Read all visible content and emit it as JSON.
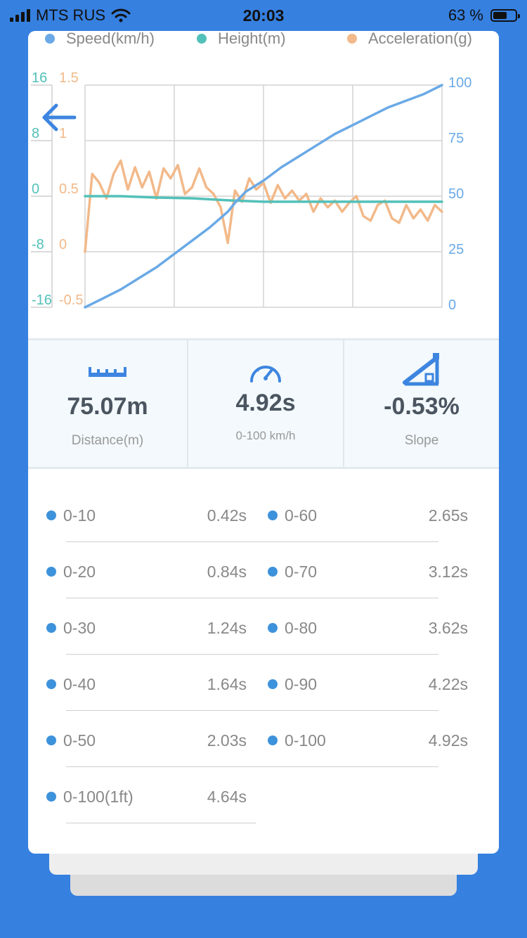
{
  "status_bar": {
    "carrier": "MTS RUS",
    "time": "20:03",
    "battery_text": "63 %",
    "battery_level": 0.63,
    "icons": [
      "signal-icon",
      "wifi-icon",
      "battery-icon"
    ]
  },
  "chart_data": {
    "type": "line",
    "series": [
      {
        "name": "Speed(km/h)",
        "color": "#6aa9e6",
        "axis": "right",
        "x": [
          0,
          0.05,
          0.1,
          0.15,
          0.2,
          0.25,
          0.3,
          0.35,
          0.4,
          0.42,
          0.45,
          0.5,
          0.55,
          0.6,
          0.65,
          0.7,
          0.75,
          0.8,
          0.85,
          0.9,
          0.95,
          1.0
        ],
        "values": [
          0,
          4,
          8,
          13,
          18,
          24,
          30,
          36,
          43,
          47,
          52,
          57,
          63,
          68,
          73,
          78,
          82,
          86,
          90,
          93,
          96,
          100
        ]
      },
      {
        "name": "Height(m)",
        "color": "#52c1b9",
        "axis": "left-outer",
        "x": [
          0,
          0.1,
          0.2,
          0.3,
          0.4,
          0.5,
          0.6,
          0.7,
          0.8,
          0.9,
          1.0
        ],
        "values": [
          0,
          0,
          -0.2,
          -0.3,
          -0.6,
          -0.8,
          -0.8,
          -0.8,
          -0.8,
          -0.8,
          -0.8
        ]
      },
      {
        "name": "Acceleration(g)",
        "color": "#f2b98a",
        "axis": "left-inner",
        "x": [
          0,
          0.02,
          0.04,
          0.06,
          0.08,
          0.1,
          0.12,
          0.14,
          0.16,
          0.18,
          0.2,
          0.22,
          0.24,
          0.26,
          0.28,
          0.3,
          0.32,
          0.34,
          0.36,
          0.38,
          0.4,
          0.42,
          0.44,
          0.46,
          0.48,
          0.5,
          0.52,
          0.54,
          0.56,
          0.58,
          0.6,
          0.62,
          0.64,
          0.66,
          0.68,
          0.7,
          0.72,
          0.74,
          0.76,
          0.78,
          0.8,
          0.82,
          0.84,
          0.86,
          0.88,
          0.9,
          0.92,
          0.94,
          0.96,
          0.98,
          1.0
        ],
        "values": [
          0,
          0.7,
          0.62,
          0.48,
          0.7,
          0.82,
          0.56,
          0.76,
          0.58,
          0.72,
          0.48,
          0.75,
          0.66,
          0.78,
          0.52,
          0.58,
          0.75,
          0.58,
          0.52,
          0.4,
          0.08,
          0.55,
          0.45,
          0.66,
          0.56,
          0.62,
          0.44,
          0.6,
          0.48,
          0.55,
          0.46,
          0.52,
          0.36,
          0.48,
          0.4,
          0.46,
          0.36,
          0.44,
          0.5,
          0.32,
          0.28,
          0.42,
          0.46,
          0.3,
          0.26,
          0.42,
          0.3,
          0.38,
          0.28,
          0.42,
          0.36
        ]
      }
    ],
    "axes": {
      "left_outer": {
        "ticks": [
          "16",
          "8",
          "0",
          "-8",
          "-16"
        ],
        "range": [
          -16,
          16
        ]
      },
      "left_inner": {
        "ticks": [
          "1.5",
          "1",
          "0.5",
          "0",
          "-0.5"
        ],
        "range": [
          -0.5,
          1.5
        ]
      },
      "right": {
        "ticks": [
          "100",
          "75",
          "50",
          "25",
          "0"
        ],
        "range": [
          0,
          100
        ]
      }
    },
    "grid": true,
    "legend_position": "top"
  },
  "stats": [
    {
      "icon": "ruler-icon",
      "value": "75.07m",
      "label": "Distance(m)"
    },
    {
      "icon": "speedometer-icon",
      "value": "4.92s",
      "label": "0-100 km/h"
    },
    {
      "icon": "slope-icon",
      "value": "-0.53%",
      "label": "Slope"
    }
  ],
  "times": {
    "left": [
      {
        "label": "0-10",
        "value": "0.42s"
      },
      {
        "label": "0-20",
        "value": "0.84s"
      },
      {
        "label": "0-30",
        "value": "1.24s"
      },
      {
        "label": "0-40",
        "value": "1.64s"
      },
      {
        "label": "0-50",
        "value": "2.03s"
      },
      {
        "label": "0-100(1ft)",
        "value": "4.64s"
      }
    ],
    "right": [
      {
        "label": "0-60",
        "value": "2.65s"
      },
      {
        "label": "0-70",
        "value": "3.12s"
      },
      {
        "label": "0-80",
        "value": "3.62s"
      },
      {
        "label": "0-90",
        "value": "4.22s"
      },
      {
        "label": "0-100",
        "value": "4.92s"
      }
    ]
  }
}
